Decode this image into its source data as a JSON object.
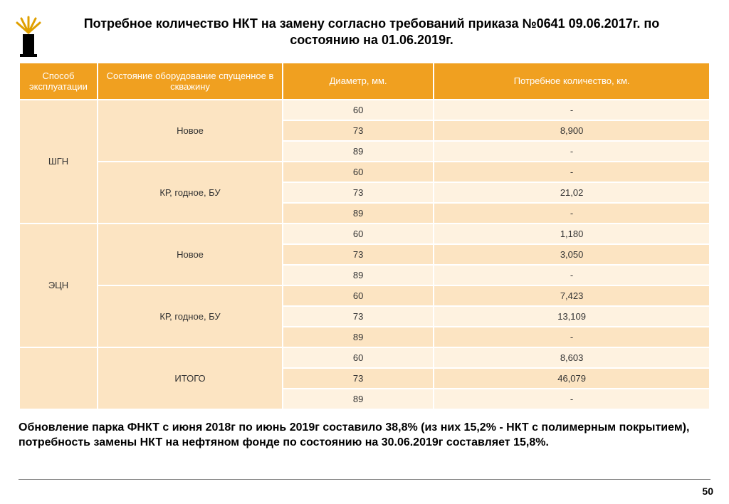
{
  "page": {
    "title": "Потребное количество НКТ на замену согласно требований приказа №0641 09.06.2017г. по состоянию на 01.06.2019г.",
    "footer_note": "Обновление парка ФНКТ с июня 2018г по июнь 2019г составило 38,8% (из них 15,2%  - НКТ с полимерным покрытием), потребность замены НКТ на нефтяном фонде по состоянию на 30.06.2019г составляет 15,8%.",
    "page_number": "50"
  },
  "table": {
    "headers": {
      "method": "Способ эксплуатации",
      "condition": "Состояние оборудование спущенное в скважину",
      "diameter": "Диаметр, мм.",
      "quantity": "Потребное количество, км."
    },
    "groups": [
      {
        "method": "ШГН",
        "subs": [
          {
            "condition": "Новое",
            "rows": [
              {
                "diameter": "60",
                "quantity": "-"
              },
              {
                "diameter": "73",
                "quantity": "8,900"
              },
              {
                "diameter": "89",
                "quantity": "-"
              }
            ]
          },
          {
            "condition": "КР, годное, БУ",
            "rows": [
              {
                "diameter": "60",
                "quantity": "-"
              },
              {
                "diameter": "73",
                "quantity": "21,02"
              },
              {
                "diameter": "89",
                "quantity": "-"
              }
            ]
          }
        ]
      },
      {
        "method": "ЭЦН",
        "subs": [
          {
            "condition": "Новое",
            "rows": [
              {
                "diameter": "60",
                "quantity": "1,180"
              },
              {
                "diameter": "73",
                "quantity": "3,050"
              },
              {
                "diameter": "89",
                "quantity": "-"
              }
            ]
          },
          {
            "condition": "КР, годное, БУ",
            "rows": [
              {
                "diameter": "60",
                "quantity": "7,423"
              },
              {
                "diameter": "73",
                "quantity": "13,109"
              },
              {
                "diameter": "89",
                "quantity": "-"
              }
            ]
          }
        ]
      },
      {
        "method": "",
        "subs": [
          {
            "condition": "ИТОГО",
            "rows": [
              {
                "diameter": "60",
                "quantity": "8,603"
              },
              {
                "diameter": "73",
                "quantity": "46,079"
              },
              {
                "diameter": "89",
                "quantity": "-"
              }
            ]
          }
        ]
      }
    ],
    "col_widths": [
      "110px",
      "260px",
      "300px",
      "300px"
    ],
    "header_bg": "#f0a020",
    "row_bg_odd": "#fef2e0",
    "row_bg_even": "#fce4c2"
  },
  "logo": {
    "well_color": "#000000",
    "spray_color": "#e0a000"
  }
}
